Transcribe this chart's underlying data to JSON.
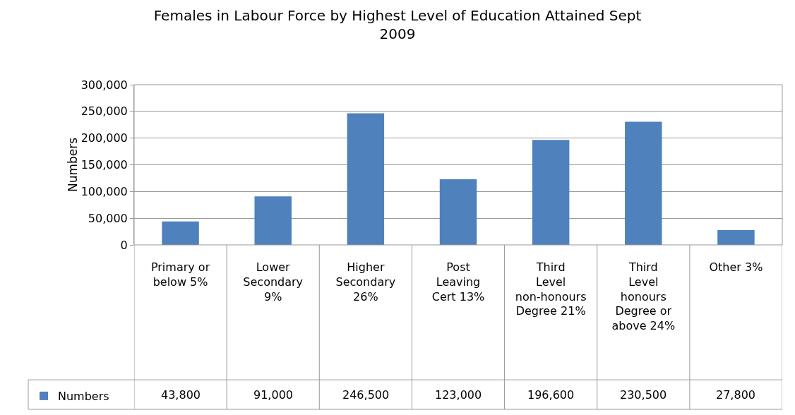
{
  "chart_data": {
    "type": "bar",
    "title": "Females in Labour Force by Highest Level of Education Attained Sept 2009",
    "ylabel": "Numbers",
    "categories": [
      "Primary or below 5%",
      "Lower Secondary 9%",
      "Higher Secondary 26%",
      "Post Leaving Cert 13%",
      "Third Level non-honours Degree 21%",
      "Third Level honours Degree or above 24%",
      "Other 3%"
    ],
    "series": [
      {
        "name": "Numbers",
        "color": "#4f81bd",
        "values": [
          43800,
          91000,
          246500,
          123000,
          196600,
          230500,
          27800
        ],
        "value_labels": [
          "43,800",
          "91,000",
          "246,500",
          "123,000",
          "196,600",
          "230,500",
          "27,800"
        ]
      }
    ],
    "ylim": [
      0,
      300000
    ],
    "yticks": [
      0,
      {
        "value": 50000,
        "label": "50,000"
      },
      {
        "value": 100000,
        "label": "100,000"
      },
      {
        "value": 150000,
        "label": "150,000"
      },
      {
        "value": 200000,
        "label": "200,000"
      },
      {
        "value": 250000,
        "label": "250,000"
      },
      {
        "value": 300000,
        "label": "300,000"
      }
    ],
    "grid": "y",
    "legend": "bottom left"
  }
}
